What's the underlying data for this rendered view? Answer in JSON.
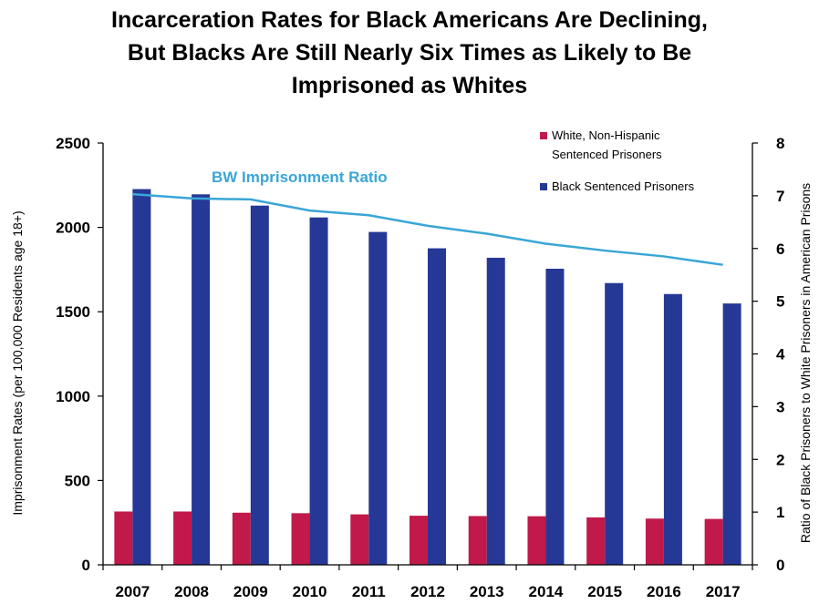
{
  "chart_data": {
    "type": "bar",
    "title": [
      "Incarceration Rates for Black Americans Are Declining,",
      "But Blacks Are Still Nearly Six Times as Likely to Be",
      "Imprisoned as Whites"
    ],
    "ylabel": "Imprisonment Rates (per 100,000 Residents age 18+)",
    "y2label": "Ratio of Black Prisoners to White Prisoners in American Prisons",
    "categories": [
      "2007",
      "2008",
      "2009",
      "2010",
      "2011",
      "2012",
      "2013",
      "2014",
      "2015",
      "2016",
      "2017"
    ],
    "ylim": [
      0,
      2500
    ],
    "yticks": [
      0,
      500,
      1000,
      1500,
      2000,
      2500
    ],
    "y2lim": [
      0,
      8
    ],
    "y2ticks": [
      0,
      1,
      2,
      3,
      4,
      5,
      6,
      7,
      8
    ],
    "grid": false,
    "legend_position": "top-right",
    "series": [
      {
        "name": "White, Non-Hispanic Sentenced Prisoners",
        "legend_lines": [
          "White, Non-Hispanic",
          "Sentenced Prisoners"
        ],
        "axis": "left",
        "kind": "bar",
        "color": "#c0194a",
        "values": [
          316,
          316,
          309,
          306,
          299,
          291,
          289,
          288,
          281,
          274,
          272
        ]
      },
      {
        "name": "Black Sentenced Prisoners",
        "legend_lines": [
          "Black Sentenced Prisoners"
        ],
        "axis": "left",
        "kind": "bar",
        "color": "#263896",
        "values": [
          2227,
          2196,
          2129,
          2059,
          1973,
          1876,
          1820,
          1755,
          1670,
          1605,
          1549
        ]
      },
      {
        "name": "BW Imprisonment Ratio",
        "axis": "right",
        "kind": "line",
        "color": "#3aa6d6",
        "values": [
          7.03,
          6.95,
          6.93,
          6.72,
          6.63,
          6.43,
          6.28,
          6.09,
          5.96,
          5.85,
          5.69
        ]
      }
    ]
  }
}
